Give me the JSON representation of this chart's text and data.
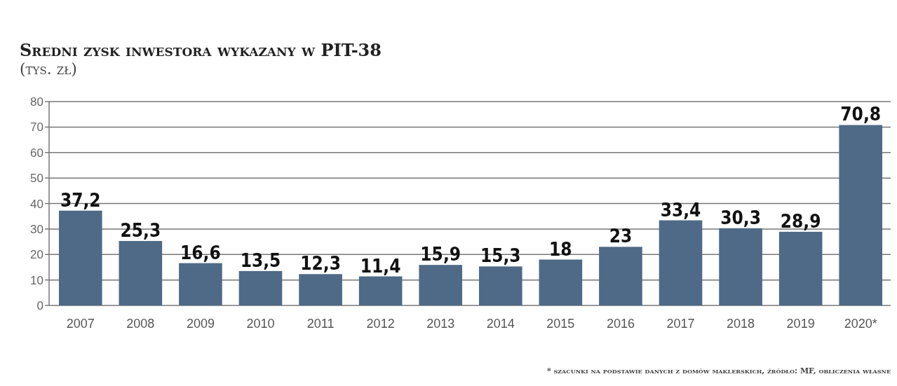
{
  "chart_data": {
    "type": "bar",
    "title": "Sredni zysk inwestora wykazany w PIT-38",
    "subtitle": "(tys. zł)",
    "categories": [
      "2007",
      "2008",
      "2009",
      "2010",
      "2011",
      "2012",
      "2013",
      "2014",
      "2015",
      "2016",
      "2017",
      "2018",
      "2019",
      "2020*"
    ],
    "values": [
      37.2,
      25.3,
      16.6,
      13.5,
      12.3,
      11.4,
      15.9,
      15.3,
      18,
      23,
      33.4,
      30.3,
      28.9,
      70.8
    ],
    "value_labels": [
      "37,2",
      "25,3",
      "16,6",
      "13,5",
      "12,3",
      "11,4",
      "15,9",
      "15,3",
      "18",
      "23",
      "33,4",
      "30,3",
      "28,9",
      "70,8"
    ],
    "color": "#4e6a87",
    "ylim": [
      0,
      80
    ],
    "yticks": [
      0,
      10,
      20,
      30,
      40,
      50,
      60,
      70,
      80
    ],
    "grid": "y",
    "annotations": [
      "* szacunki na podstawie danych z domów maklerskich, źródło: MF, obliczenia własne"
    ]
  }
}
